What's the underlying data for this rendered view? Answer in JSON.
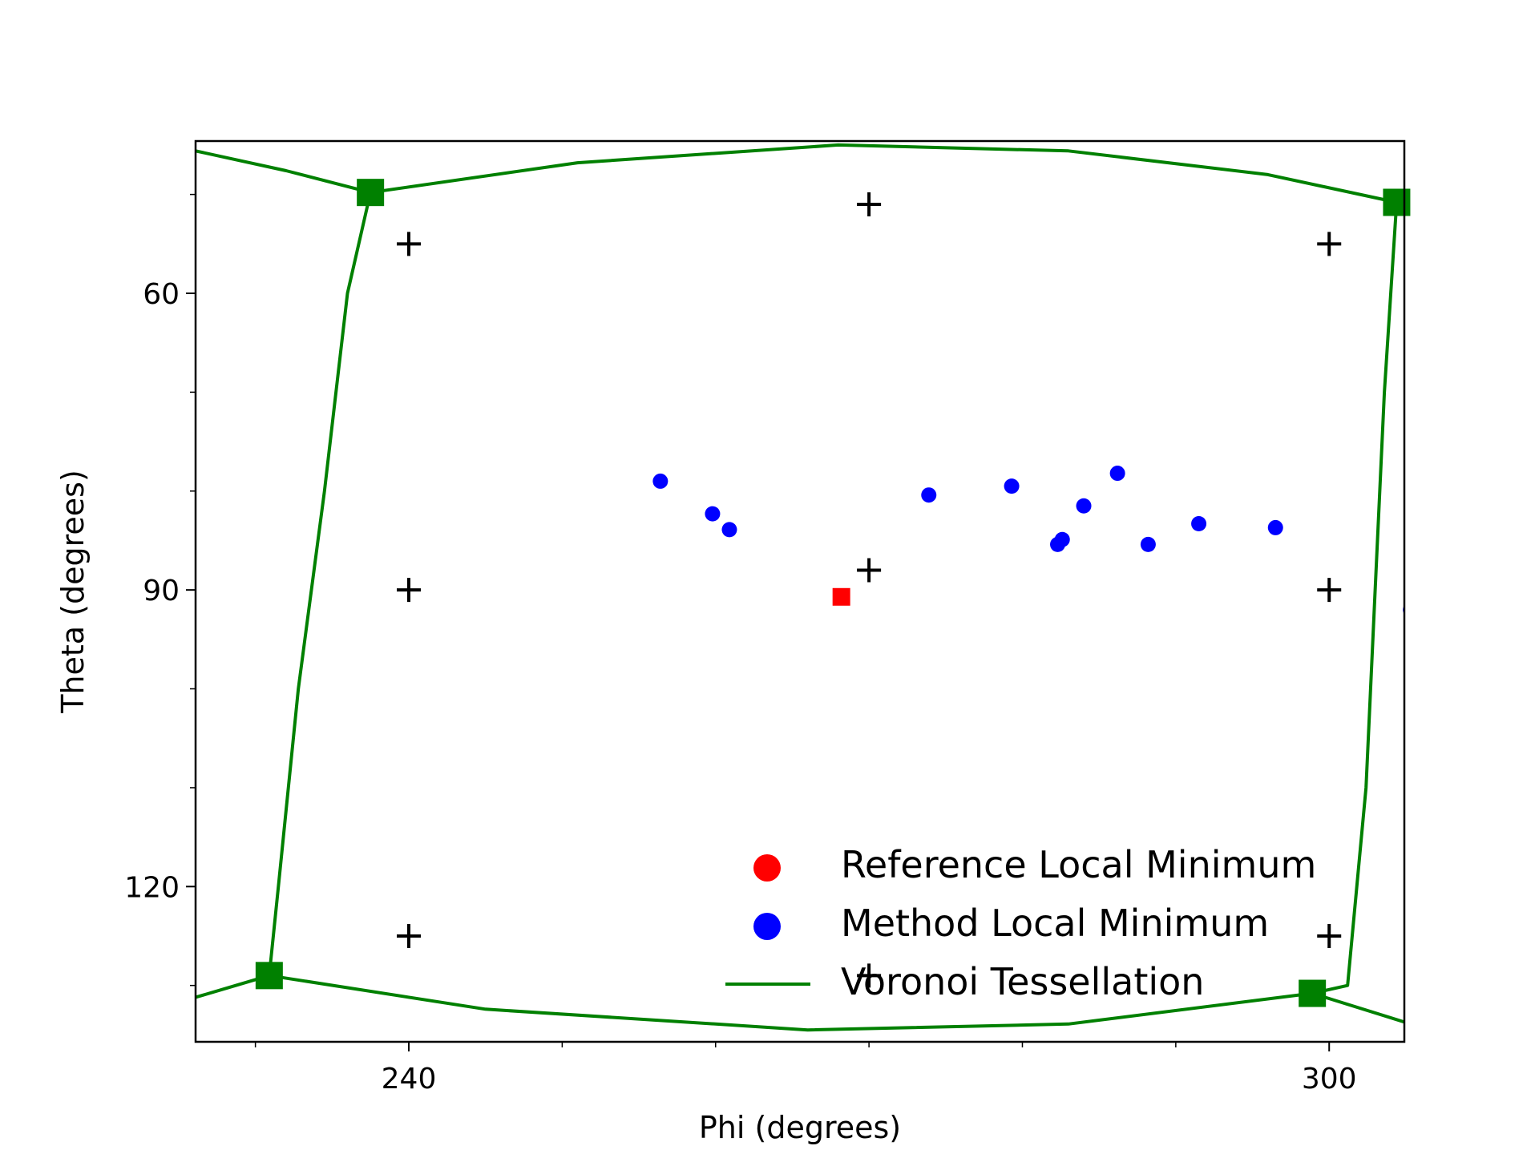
{
  "chart_data": {
    "type": "scatter",
    "title": "",
    "xlabel": "Phi (degrees)",
    "ylabel": "Theta (degrees)",
    "xlim": [
      226.1,
      304.9
    ],
    "ylim": [
      135.7,
      44.6
    ],
    "y_inverted": true,
    "grid": false,
    "legend_position": "lower-right",
    "x_major_ticks": [
      240,
      300
    ],
    "x_minor_ticks": [
      230,
      250,
      260,
      270,
      280,
      290
    ],
    "y_major_ticks": [
      60,
      90,
      120
    ],
    "y_minor_ticks": [
      50,
      70,
      80,
      100,
      110,
      130
    ],
    "x_tick_labels": [
      "240",
      "300"
    ],
    "y_tick_labels": [
      "60",
      "90",
      "120"
    ],
    "legend": [
      {
        "label": "Reference Local Minimum",
        "marker": "circle",
        "color": "#ff0000"
      },
      {
        "label": "Method Local Minimum",
        "marker": "circle",
        "color": "#0000ff"
      },
      {
        "label": "Voronoi Tessellation",
        "marker": "line",
        "color": "#008000"
      }
    ],
    "reference_points": [
      {
        "x": 268.2,
        "y": 90.7
      }
    ],
    "method_points": [
      {
        "x": 256.4,
        "y": 79.0
      },
      {
        "x": 259.8,
        "y": 82.3
      },
      {
        "x": 260.9,
        "y": 83.9
      },
      {
        "x": 273.9,
        "y": 80.4
      },
      {
        "x": 279.3,
        "y": 79.5
      },
      {
        "x": 282.3,
        "y": 85.4
      },
      {
        "x": 282.6,
        "y": 84.9
      },
      {
        "x": 284.0,
        "y": 81.5
      },
      {
        "x": 286.2,
        "y": 78.2
      },
      {
        "x": 288.2,
        "y": 85.4
      },
      {
        "x": 291.5,
        "y": 83.3
      },
      {
        "x": 296.5,
        "y": 83.7
      },
      {
        "x": 305.3,
        "y": 92.0
      }
    ],
    "plus_markers": [
      {
        "x": 240,
        "y": 55
      },
      {
        "x": 270,
        "y": 51
      },
      {
        "x": 300,
        "y": 55
      },
      {
        "x": 240,
        "y": 90
      },
      {
        "x": 270,
        "y": 88
      },
      {
        "x": 300,
        "y": 90
      },
      {
        "x": 240,
        "y": 125
      },
      {
        "x": 270,
        "y": 129
      },
      {
        "x": 300,
        "y": 125
      }
    ],
    "voronoi_vertices": [
      {
        "x": 237.5,
        "y": 49.8
      },
      {
        "x": 304.4,
        "y": 50.8
      },
      {
        "x": 230.9,
        "y": 129.0
      },
      {
        "x": 298.9,
        "y": 130.8
      }
    ],
    "voronoi_edges": [
      [
        [
          226.1,
          45.6
        ],
        [
          232.0,
          47.6
        ],
        [
          237.5,
          49.8
        ]
      ],
      [
        [
          237.5,
          49.8
        ],
        [
          251.0,
          46.8
        ],
        [
          268.0,
          45.0
        ],
        [
          283.0,
          45.6
        ],
        [
          296.0,
          48.0
        ],
        [
          304.4,
          50.8
        ]
      ],
      [
        [
          304.4,
          50.8
        ],
        [
          307.5,
          49.1
        ],
        [
          310.0,
          48.1
        ]
      ],
      [
        [
          237.5,
          49.8
        ],
        [
          236.0,
          60.0
        ],
        [
          234.5,
          80.0
        ],
        [
          232.8,
          100.0
        ],
        [
          231.5,
          120.0
        ],
        [
          230.9,
          129.0
        ]
      ],
      [
        [
          304.4,
          50.8
        ],
        [
          303.6,
          70.0
        ],
        [
          303.0,
          90.0
        ],
        [
          302.4,
          110.0
        ],
        [
          301.2,
          130.0
        ],
        [
          298.9,
          130.8
        ]
      ],
      [
        [
          226.1,
          131.2
        ],
        [
          228.5,
          130.1
        ],
        [
          230.9,
          129.0
        ]
      ],
      [
        [
          230.9,
          129.0
        ],
        [
          245.0,
          132.4
        ],
        [
          266.0,
          134.5
        ],
        [
          283.0,
          133.9
        ],
        [
          298.9,
          130.8
        ]
      ],
      [
        [
          298.9,
          130.8
        ],
        [
          304.9,
          133.7
        ]
      ]
    ]
  }
}
